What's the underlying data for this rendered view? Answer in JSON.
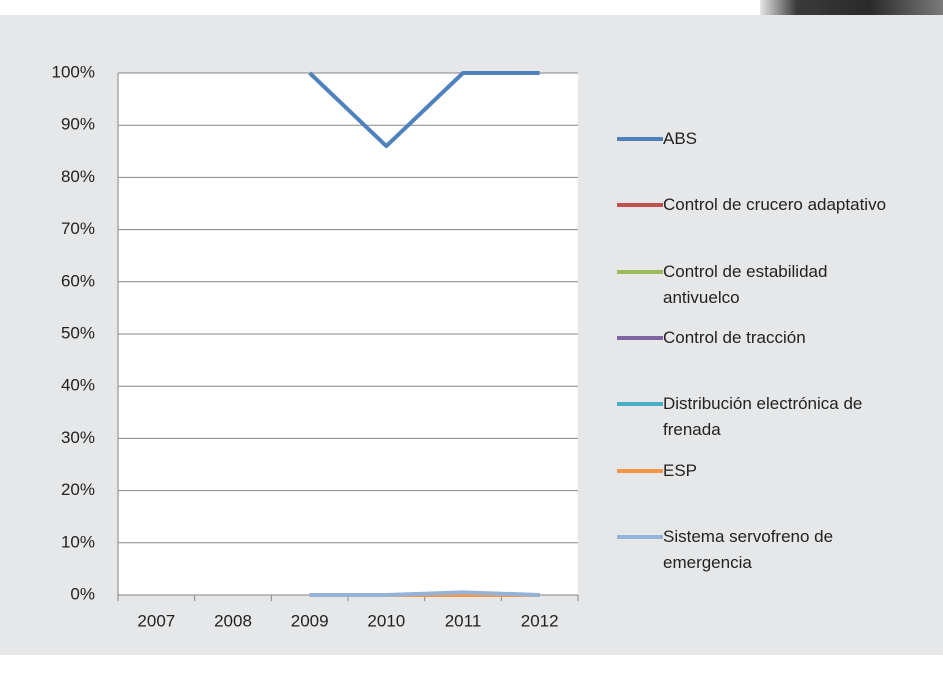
{
  "chart_data": {
    "type": "line",
    "categories": [
      "2007",
      "2008",
      "2009",
      "2010",
      "2011",
      "2012"
    ],
    "series": [
      {
        "name": "ABS",
        "color": "#4f81bd",
        "values": [
          null,
          null,
          100,
          86,
          100,
          100
        ]
      },
      {
        "name": "Control de crucero adaptativo",
        "color": "#c0504d",
        "values": [
          null,
          null,
          0,
          0,
          0,
          0
        ]
      },
      {
        "name": "Control de estabilidad antivuelco",
        "color": "#9bbb59",
        "values": [
          null,
          null,
          0,
          0,
          0,
          0
        ]
      },
      {
        "name": "Control de tracción",
        "color": "#8064a2",
        "values": [
          null,
          null,
          0,
          0,
          0,
          0
        ]
      },
      {
        "name": "Distribución electrónica de frenada",
        "color": "#4bacc6",
        "values": [
          null,
          null,
          0,
          0,
          0,
          0
        ]
      },
      {
        "name": "ESP",
        "color": "#f79646",
        "values": [
          null,
          null,
          0,
          0,
          0,
          0
        ]
      },
      {
        "name": "Sistema servofreno de emergencia",
        "color": "#95b3d7",
        "values": [
          null,
          null,
          0,
          0,
          0.5,
          0
        ]
      }
    ],
    "ylim": [
      0,
      100
    ],
    "yticks": [
      {
        "value": 0,
        "label": "0%"
      },
      {
        "value": 10,
        "label": "10%"
      },
      {
        "value": 20,
        "label": "20%"
      },
      {
        "value": 30,
        "label": "30%"
      },
      {
        "value": 40,
        "label": "40%"
      },
      {
        "value": 50,
        "label": "50%"
      },
      {
        "value": 60,
        "label": "60%"
      },
      {
        "value": 70,
        "label": "70%"
      },
      {
        "value": 80,
        "label": "80%"
      },
      {
        "value": 90,
        "label": "90%"
      },
      {
        "value": 100,
        "label": "100%"
      }
    ],
    "grid": true
  }
}
